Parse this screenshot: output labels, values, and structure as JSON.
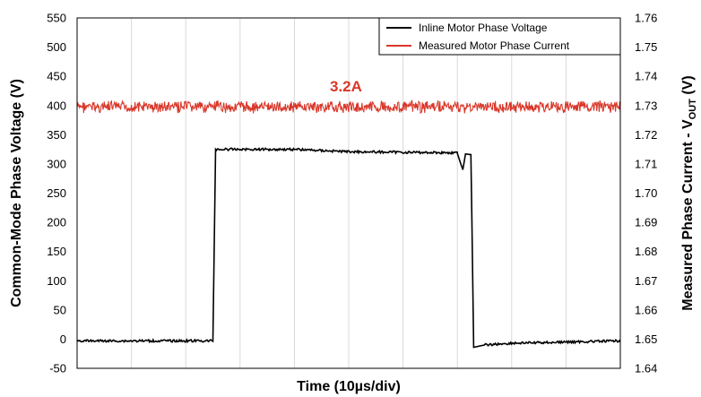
{
  "chart_data": {
    "type": "line",
    "xlabel": "Time (10µs/div)",
    "ylabel_left": "Common-Mode Phase Voltage (V)",
    "ylabel_right": "Measured Phase Current - V",
    "ylabel_right_sub": "OUT",
    "ylabel_right_unit": " (V)",
    "y_left": {
      "min": -50,
      "max": 550,
      "ticks": [
        "550",
        "500",
        "450",
        "400",
        "350",
        "300",
        "250",
        "200",
        "150",
        "100",
        "50",
        "0",
        "-50"
      ]
    },
    "y_right": {
      "min": 1.64,
      "max": 1.76,
      "ticks": [
        "1.76",
        "1.75",
        "1.74",
        "1.73",
        "1.72",
        "1.71",
        "1.70",
        "1.69",
        "1.68",
        "1.67",
        "1.66",
        "1.65",
        "1.64"
      ]
    },
    "x_divisions": 10,
    "grid": "vertical",
    "legend_placement": "top-right",
    "series": [
      {
        "name": "Inline Motor Phase Voltage",
        "color": "#000000",
        "axis": "left",
        "points": [
          [
            0,
            -3
          ],
          [
            2.5,
            -3
          ],
          [
            2.55,
            325
          ],
          [
            3,
            325
          ],
          [
            4,
            325
          ],
          [
            5,
            321
          ],
          [
            6,
            320
          ],
          [
            7,
            319
          ],
          [
            7,
            318
          ],
          [
            7.1,
            290
          ],
          [
            7.15,
            317
          ],
          [
            7.25,
            316
          ],
          [
            7.3,
            -14
          ],
          [
            7.5,
            -10
          ],
          [
            8,
            -7
          ],
          [
            9,
            -5
          ],
          [
            10,
            -3
          ]
        ]
      },
      {
        "name": "Measured Motor Phase Current",
        "color": "#D9372A",
        "axis": "right",
        "points": [
          [
            0,
            1.7295
          ],
          [
            10,
            1.7295
          ]
        ]
      }
    ],
    "annotations": [
      {
        "text": "3.2A",
        "color": "#D9372A"
      }
    ]
  }
}
